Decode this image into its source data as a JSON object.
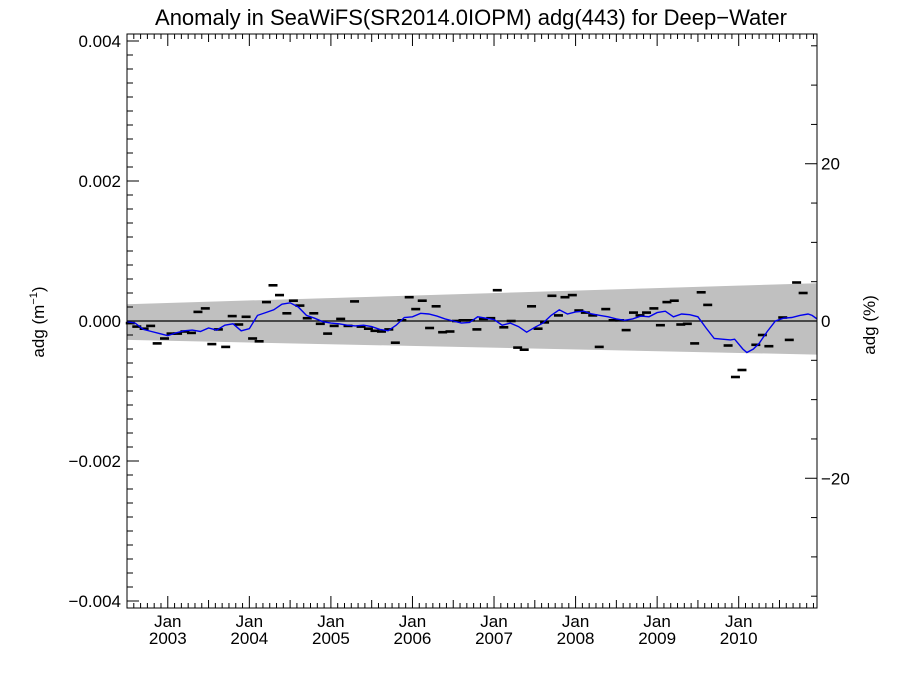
{
  "chart_data": {
    "type": "line",
    "title": "Anomaly in SeaWiFS(SR2014.0IOPM) adg(443) for Deep−Water",
    "ylabel_left_base": "adg (m",
    "ylabel_left_sup": "−1",
    "ylabel_left_end": ")",
    "ylabel_right": "adg (%)",
    "xlim": [
      2002.5,
      2010.96
    ],
    "ylim": [
      -0.0041,
      0.0041
    ],
    "ylim_right": [
      -36.5,
      36.5
    ],
    "y_ticks": [
      {
        "value": 0.004,
        "label": "0.004"
      },
      {
        "value": 0.002,
        "label": "0.002"
      },
      {
        "value": 0.0,
        "label": "0.000"
      },
      {
        "value": -0.002,
        "label": "−0.002"
      },
      {
        "value": -0.004,
        "label": "−0.004"
      }
    ],
    "y_right_ticks": [
      {
        "value": 20,
        "label": "20"
      },
      {
        "value": 0,
        "label": "0"
      },
      {
        "value": -20,
        "label": "−20"
      }
    ],
    "x_ticks": [
      {
        "value": 2003.0,
        "month": "Jan",
        "year": "2003"
      },
      {
        "value": 2004.0,
        "month": "Jan",
        "year": "2004"
      },
      {
        "value": 2005.0,
        "month": "Jan",
        "year": "2005"
      },
      {
        "value": 2006.0,
        "month": "Jan",
        "year": "2006"
      },
      {
        "value": 2007.0,
        "month": "Jan",
        "year": "2007"
      },
      {
        "value": 2008.0,
        "month": "Jan",
        "year": "2008"
      },
      {
        "value": 2009.0,
        "month": "Jan",
        "year": "2009"
      },
      {
        "value": 2010.0,
        "month": "Jan",
        "year": "2010"
      }
    ],
    "uncertainty_band": {
      "color": "#c0c0c0",
      "upper": [
        [
          2002.5,
          0.00024
        ],
        [
          2010.96,
          0.00054
        ]
      ],
      "lower": [
        [
          2002.5,
          -0.00027
        ],
        [
          2010.96,
          -0.00048
        ]
      ]
    },
    "zero_line_color": "#000000",
    "monthly_anomalies": {
      "color": "#000000",
      "points": [
        [
          2002.54,
          -3e-05
        ],
        [
          2002.62,
          -8e-05
        ],
        [
          2002.71,
          -0.00011
        ],
        [
          2002.79,
          -7e-05
        ],
        [
          2002.87,
          -0.00032
        ],
        [
          2002.96,
          -0.00025
        ],
        [
          2003.04,
          -0.00018
        ],
        [
          2003.12,
          -0.00018
        ],
        [
          2003.21,
          -0.00015
        ],
        [
          2003.29,
          -0.00017
        ],
        [
          2003.37,
          0.00013
        ],
        [
          2003.46,
          0.00018
        ],
        [
          2003.54,
          -0.00033
        ],
        [
          2003.62,
          -0.00012
        ],
        [
          2003.71,
          -0.00037
        ],
        [
          2003.79,
          7e-05
        ],
        [
          2003.87,
          -5e-05
        ],
        [
          2003.96,
          6e-05
        ],
        [
          2004.04,
          -0.00025
        ],
        [
          2004.12,
          -0.00029
        ],
        [
          2004.21,
          0.00027
        ],
        [
          2004.29,
          0.00051
        ],
        [
          2004.37,
          0.00037
        ],
        [
          2004.46,
          0.00011
        ],
        [
          2004.54,
          0.00029
        ],
        [
          2004.62,
          0.00022
        ],
        [
          2004.71,
          4e-05
        ],
        [
          2004.79,
          0.00011
        ],
        [
          2004.87,
          -4e-05
        ],
        [
          2004.96,
          -0.00018
        ],
        [
          2005.04,
          -7e-05
        ],
        [
          2005.12,
          3e-05
        ],
        [
          2005.21,
          -7e-05
        ],
        [
          2005.29,
          0.00028
        ],
        [
          2005.37,
          -8e-05
        ],
        [
          2005.46,
          -0.00011
        ],
        [
          2005.54,
          -0.00014
        ],
        [
          2005.62,
          -0.00015
        ],
        [
          2005.71,
          -0.00012
        ],
        [
          2005.79,
          -0.00031
        ],
        [
          2005.87,
          1e-05
        ],
        [
          2005.96,
          0.00034
        ],
        [
          2006.04,
          0.00017
        ],
        [
          2006.12,
          0.00029
        ],
        [
          2006.21,
          -0.0001
        ],
        [
          2006.29,
          0.00021
        ],
        [
          2006.37,
          -0.00016
        ],
        [
          2006.46,
          -0.00015
        ],
        [
          2006.54,
          0.0
        ],
        [
          2006.62,
          1e-05
        ],
        [
          2006.71,
          1e-05
        ],
        [
          2006.79,
          -0.00012
        ],
        [
          2006.87,
          3e-05
        ],
        [
          2006.96,
          4e-05
        ],
        [
          2007.04,
          0.00044
        ],
        [
          2007.12,
          -9e-05
        ],
        [
          2007.21,
          0.0
        ],
        [
          2007.29,
          -0.00038
        ],
        [
          2007.37,
          -0.00041
        ],
        [
          2007.46,
          0.00021
        ],
        [
          2007.54,
          -0.00011
        ],
        [
          2007.62,
          -2e-05
        ],
        [
          2007.71,
          0.00036
        ],
        [
          2007.79,
          8e-05
        ],
        [
          2007.87,
          0.00034
        ],
        [
          2007.96,
          0.00037
        ],
        [
          2008.04,
          0.00015
        ],
        [
          2008.12,
          0.00012
        ],
        [
          2008.21,
          8e-05
        ],
        [
          2008.29,
          -0.00037
        ],
        [
          2008.37,
          0.00017
        ],
        [
          2008.46,
          1e-05
        ],
        [
          2008.54,
          1e-05
        ],
        [
          2008.62,
          -0.00013
        ],
        [
          2008.71,
          0.00012
        ],
        [
          2008.79,
          8e-05
        ],
        [
          2008.87,
          0.00012
        ],
        [
          2008.96,
          0.00018
        ],
        [
          2009.04,
          -6e-05
        ],
        [
          2009.12,
          0.00027
        ],
        [
          2009.21,
          0.00029
        ],
        [
          2009.29,
          -5e-05
        ],
        [
          2009.37,
          -4e-05
        ],
        [
          2009.46,
          -0.00032
        ],
        [
          2009.54,
          0.00041
        ],
        [
          2009.62,
          0.00023
        ],
        [
          2009.87,
          -0.00035
        ],
        [
          2009.96,
          -0.0008
        ],
        [
          2010.04,
          -0.0007
        ],
        [
          2010.21,
          -0.00034
        ],
        [
          2010.29,
          -0.0002
        ],
        [
          2010.37,
          -0.00036
        ],
        [
          2010.54,
          5e-05
        ],
        [
          2010.62,
          -0.00027
        ],
        [
          2010.71,
          0.00055
        ],
        [
          2010.79,
          0.0004
        ]
      ]
    },
    "running_mean": {
      "color": "#0000ee",
      "points": [
        [
          2002.5,
          -1e-05
        ],
        [
          2002.6,
          -3e-05
        ],
        [
          2002.7,
          -0.00012
        ],
        [
          2002.8,
          -0.00015
        ],
        [
          2002.9,
          -0.00018
        ],
        [
          2003.0,
          -0.00021
        ],
        [
          2003.1,
          -0.00017
        ],
        [
          2003.2,
          -0.00014
        ],
        [
          2003.3,
          -0.00013
        ],
        [
          2003.4,
          -0.00015
        ],
        [
          2003.5,
          -0.0001
        ],
        [
          2003.6,
          -0.00013
        ],
        [
          2003.7,
          -6e-05
        ],
        [
          2003.8,
          -4e-05
        ],
        [
          2003.9,
          -0.00014
        ],
        [
          2004.0,
          -0.00011
        ],
        [
          2004.1,
          8e-05
        ],
        [
          2004.2,
          0.00012
        ],
        [
          2004.3,
          0.00016
        ],
        [
          2004.4,
          0.00024
        ],
        [
          2004.5,
          0.00026
        ],
        [
          2004.6,
          0.0002
        ],
        [
          2004.7,
          8e-05
        ],
        [
          2004.8,
          4e-05
        ],
        [
          2004.9,
          -1e-05
        ],
        [
          2005.0,
          -3e-05
        ],
        [
          2005.1,
          -4e-05
        ],
        [
          2005.2,
          -6e-05
        ],
        [
          2005.3,
          -7e-05
        ],
        [
          2005.4,
          -6e-05
        ],
        [
          2005.5,
          -8e-05
        ],
        [
          2005.6,
          -0.00012
        ],
        [
          2005.7,
          -0.00014
        ],
        [
          2005.8,
          -6e-05
        ],
        [
          2005.9,
          5e-05
        ],
        [
          2006.0,
          6e-05
        ],
        [
          2006.1,
          0.00011
        ],
        [
          2006.2,
          0.0001
        ],
        [
          2006.3,
          7e-05
        ],
        [
          2006.4,
          3e-05
        ],
        [
          2006.5,
          0.0
        ],
        [
          2006.6,
          -3e-05
        ],
        [
          2006.7,
          -2e-05
        ],
        [
          2006.8,
          6e-05
        ],
        [
          2006.9,
          4e-05
        ],
        [
          2007.0,
          2e-05
        ],
        [
          2007.1,
          -6e-05
        ],
        [
          2007.2,
          -3e-05
        ],
        [
          2007.3,
          -8e-05
        ],
        [
          2007.4,
          -0.00016
        ],
        [
          2007.5,
          -9e-05
        ],
        [
          2007.6,
          -3e-05
        ],
        [
          2007.7,
          8e-05
        ],
        [
          2007.8,
          0.00016
        ],
        [
          2007.9,
          0.0001
        ],
        [
          2008.0,
          0.00013
        ],
        [
          2008.1,
          0.00014
        ],
        [
          2008.2,
          0.0001
        ],
        [
          2008.3,
          8e-05
        ],
        [
          2008.4,
          6e-05
        ],
        [
          2008.5,
          3e-05
        ],
        [
          2008.6,
          1e-05
        ],
        [
          2008.7,
          3e-05
        ],
        [
          2008.8,
          7e-05
        ],
        [
          2008.9,
          6e-05
        ],
        [
          2009.0,
          0.00012
        ],
        [
          2009.1,
          0.00014
        ],
        [
          2009.2,
          6e-05
        ],
        [
          2009.3,
          0.0001
        ],
        [
          2009.4,
          9e-05
        ],
        [
          2009.5,
          6e-05
        ],
        [
          2009.6,
          -0.0001
        ],
        [
          2009.7,
          -0.00025
        ],
        [
          2009.8,
          -0.00026
        ],
        [
          2009.9,
          -0.00027
        ],
        [
          2009.95,
          -0.00026
        ],
        [
          2010.0,
          -0.00033
        ],
        [
          2010.05,
          -0.0004
        ],
        [
          2010.1,
          -0.00045
        ],
        [
          2010.18,
          -0.0004
        ],
        [
          2010.25,
          -0.00032
        ],
        [
          2010.35,
          -0.00015
        ],
        [
          2010.45,
          0.0
        ],
        [
          2010.55,
          4e-05
        ],
        [
          2010.65,
          5e-05
        ],
        [
          2010.75,
          8e-05
        ],
        [
          2010.85,
          0.0001
        ],
        [
          2010.9,
          8e-05
        ],
        [
          2010.96,
          3e-05
        ]
      ]
    },
    "colors": {
      "axis": "#000000",
      "background": "#ffffff"
    }
  }
}
